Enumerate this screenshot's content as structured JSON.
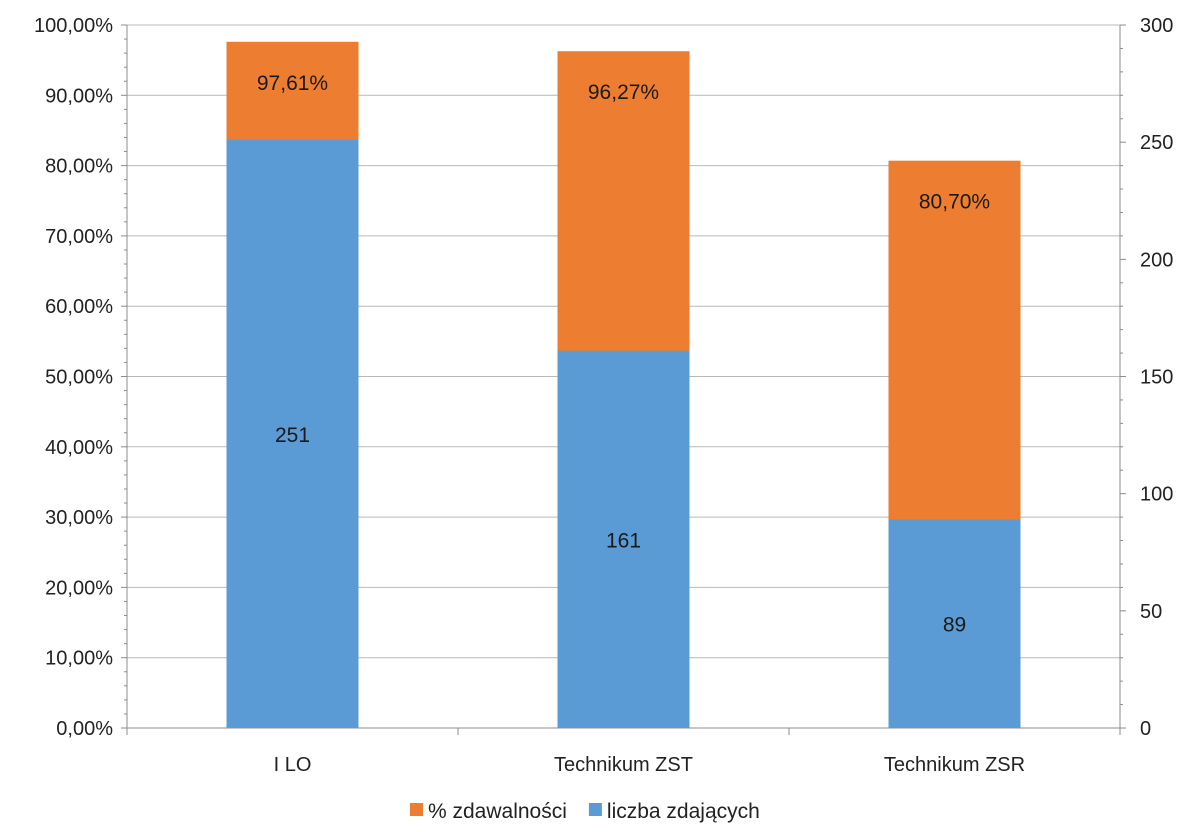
{
  "chart_data": {
    "type": "bar",
    "stacking": "overlay-dual-axis",
    "categories": [
      "I LO",
      "Technikum ZST",
      "Technikum ZSR"
    ],
    "series": [
      {
        "name": "% zdawalności",
        "axis": "left",
        "values": [
          97.61,
          96.27,
          80.7
        ],
        "labels": [
          "97,61%",
          "96,27%",
          "80,70%"
        ],
        "color": "#ED7D31"
      },
      {
        "name": "liczba zdających",
        "axis": "right",
        "values": [
          251,
          161,
          89
        ],
        "labels": [
          "251",
          "161",
          "89"
        ],
        "color": "#5B9BD5"
      }
    ],
    "left_axis": {
      "ylim": [
        0,
        100
      ],
      "ticks": [
        "0,00%",
        "10,00%",
        "20,00%",
        "30,00%",
        "40,00%",
        "50,00%",
        "60,00%",
        "70,00%",
        "80,00%",
        "90,00%",
        "100,00%"
      ]
    },
    "right_axis": {
      "ylim": [
        0,
        300
      ],
      "ticks": [
        "0",
        "50",
        "100",
        "150",
        "200",
        "250",
        "300"
      ]
    },
    "grid": true,
    "legend_position": "bottom",
    "title": "",
    "xlabel": "",
    "ylabel": ""
  }
}
